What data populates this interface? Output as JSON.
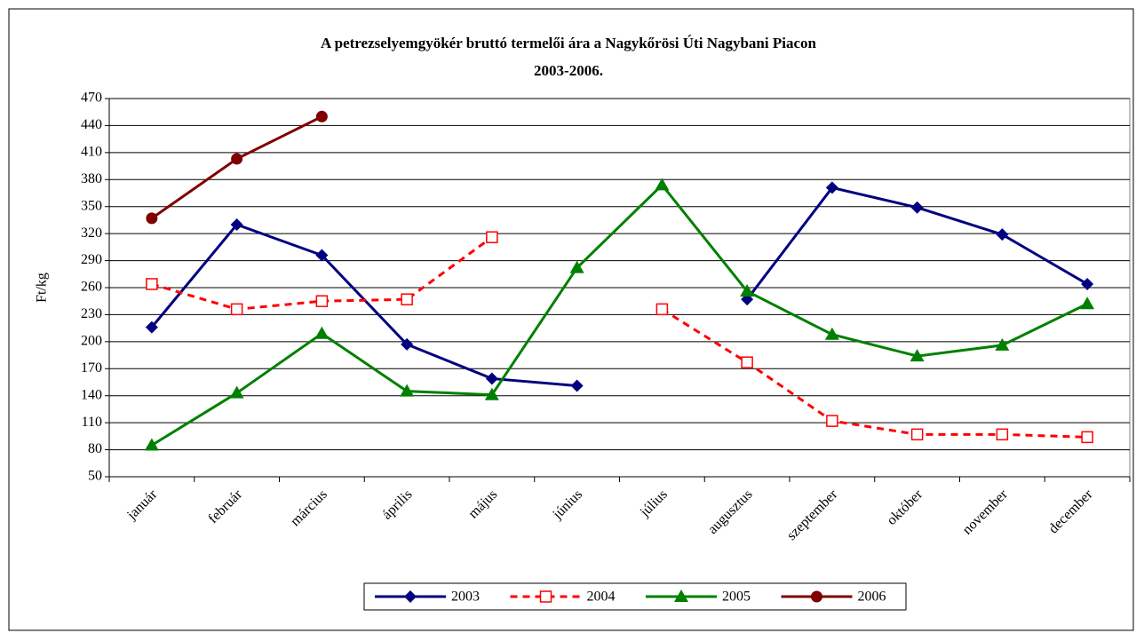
{
  "chart_data": {
    "type": "line",
    "title": "A petrezselyemgyökér bruttó termelői ára a Nagykőrösi Úti Nagybani Piacon",
    "subtitle": "2003-2006.",
    "y_label": "Ft/kg",
    "categories": [
      "január",
      "február",
      "március",
      "április",
      "május",
      "június",
      "július",
      "augusztus",
      "szeptember",
      "október",
      "november",
      "december"
    ],
    "ylim": [
      50,
      470
    ],
    "yticks": [
      50,
      80,
      110,
      140,
      170,
      200,
      230,
      260,
      290,
      320,
      350,
      380,
      410,
      440,
      470
    ],
    "grid": true,
    "legend": "bottom",
    "series": [
      {
        "name": "2003",
        "color": "#000080",
        "marker": "diamond",
        "dash": false,
        "values": [
          216,
          330,
          296,
          197,
          159,
          151,
          null,
          247,
          371,
          349,
          319,
          264
        ]
      },
      {
        "name": "2004",
        "color": "#ff0000",
        "marker": "square-open",
        "dash": true,
        "values": [
          264,
          236,
          245,
          247,
          316,
          null,
          236,
          177,
          112,
          97,
          97,
          94
        ]
      },
      {
        "name": "2005",
        "color": "#008000",
        "marker": "triangle",
        "dash": false,
        "values": [
          85,
          143,
          209,
          145,
          141,
          282,
          374,
          256,
          208,
          184,
          196,
          242
        ]
      },
      {
        "name": "2006",
        "color": "#800000",
        "marker": "circle",
        "dash": false,
        "values": [
          337,
          403,
          450,
          null,
          null,
          null,
          null,
          null,
          null,
          null,
          null,
          null
        ]
      }
    ]
  }
}
